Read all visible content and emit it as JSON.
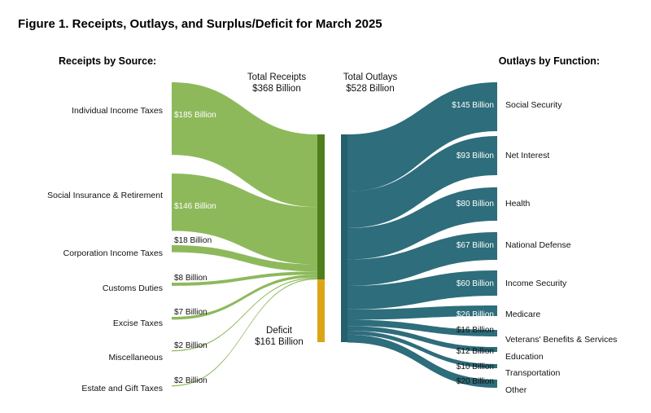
{
  "chart_data": {
    "type": "sankey",
    "title": "Figure 1. Receipts, Outlays, and Surplus/Deficit for March 2025",
    "receipts_heading": "Receipts by Source:",
    "outlays_heading": "Outlays by Function:",
    "total_receipts": {
      "label": "Total Receipts",
      "value_label": "$368 Billion",
      "value": 368
    },
    "total_outlays": {
      "label": "Total Outlays",
      "value_label": "$528 Billion",
      "value": 528
    },
    "deficit": {
      "label": "Deficit",
      "value_label": "$161 Billion",
      "value": 161
    },
    "receipts": [
      {
        "name": "Individual Income Taxes",
        "value": 185,
        "value_label": "$185 Billion"
      },
      {
        "name": "Social Insurance & Retirement",
        "value": 146,
        "value_label": "$146 Billion"
      },
      {
        "name": "Corporation Income Taxes",
        "value": 18,
        "value_label": "$18 Billion"
      },
      {
        "name": "Customs Duties",
        "value": 8,
        "value_label": "$8 Billion"
      },
      {
        "name": "Excise Taxes",
        "value": 7,
        "value_label": "$7 Billion"
      },
      {
        "name": "Miscellaneous",
        "value": 2,
        "value_label": "$2 Billion"
      },
      {
        "name": "Estate and Gift Taxes",
        "value": 2,
        "value_label": "$2 Billion"
      }
    ],
    "outlays": [
      {
        "name": "Social Security",
        "value": 145,
        "value_label": "$145 Billion"
      },
      {
        "name": "Net Interest",
        "value": 93,
        "value_label": "$93 Billion"
      },
      {
        "name": "Health",
        "value": 80,
        "value_label": "$80 Billion"
      },
      {
        "name": "National Defense",
        "value": 67,
        "value_label": "$67 Billion"
      },
      {
        "name": "Income Security",
        "value": 60,
        "value_label": "$60 Billion"
      },
      {
        "name": "Medicare",
        "value": 26,
        "value_label": "$26 Billion"
      },
      {
        "name": "Veterans' Benefits & Services",
        "value": 16,
        "value_label": "$16 Billion"
      },
      {
        "name": "Education",
        "value": 12,
        "value_label": "$12 Billion"
      },
      {
        "name": "Transportation",
        "value": 10,
        "value_label": "$10 Billion"
      },
      {
        "name": "Other",
        "value": 20,
        "value_label": "$20 Billion"
      }
    ],
    "colors": {
      "receipts": "#8db95b",
      "receipts_bar": "#4e7f1c",
      "deficit": "#dca517",
      "outlays": "#2e6d7b",
      "outlays_bar": "#24606e"
    }
  }
}
